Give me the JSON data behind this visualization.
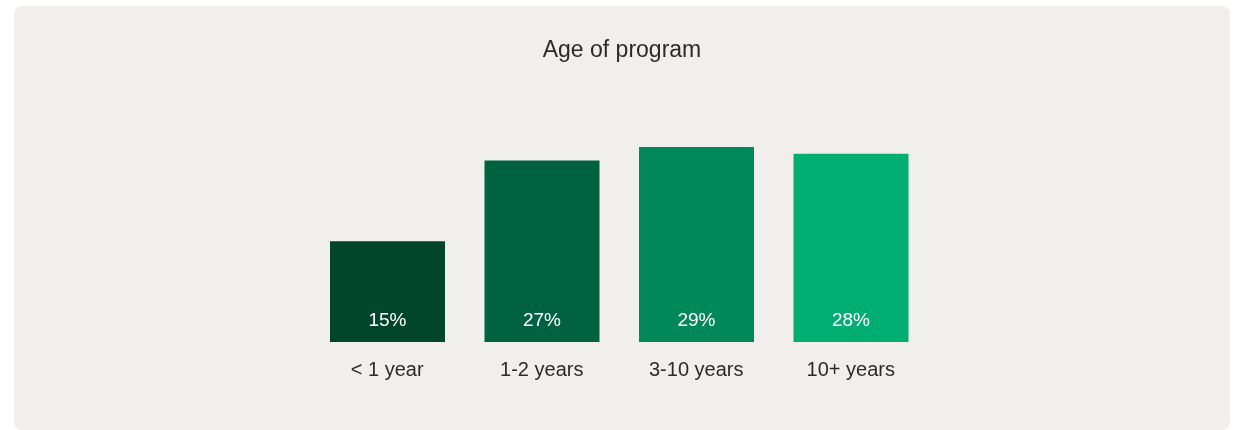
{
  "chart_data": {
    "type": "bar",
    "title": "Age of program",
    "categories": [
      "< 1 year",
      "1-2 years",
      "3-10 years",
      "10+ years"
    ],
    "values": [
      15,
      27,
      29,
      28
    ],
    "colors": [
      "#00452c",
      "#006241",
      "#00875a",
      "#00ae74"
    ],
    "value_labels": [
      "15%",
      "27%",
      "29%",
      "28%"
    ],
    "grid": false,
    "legend": false
  }
}
